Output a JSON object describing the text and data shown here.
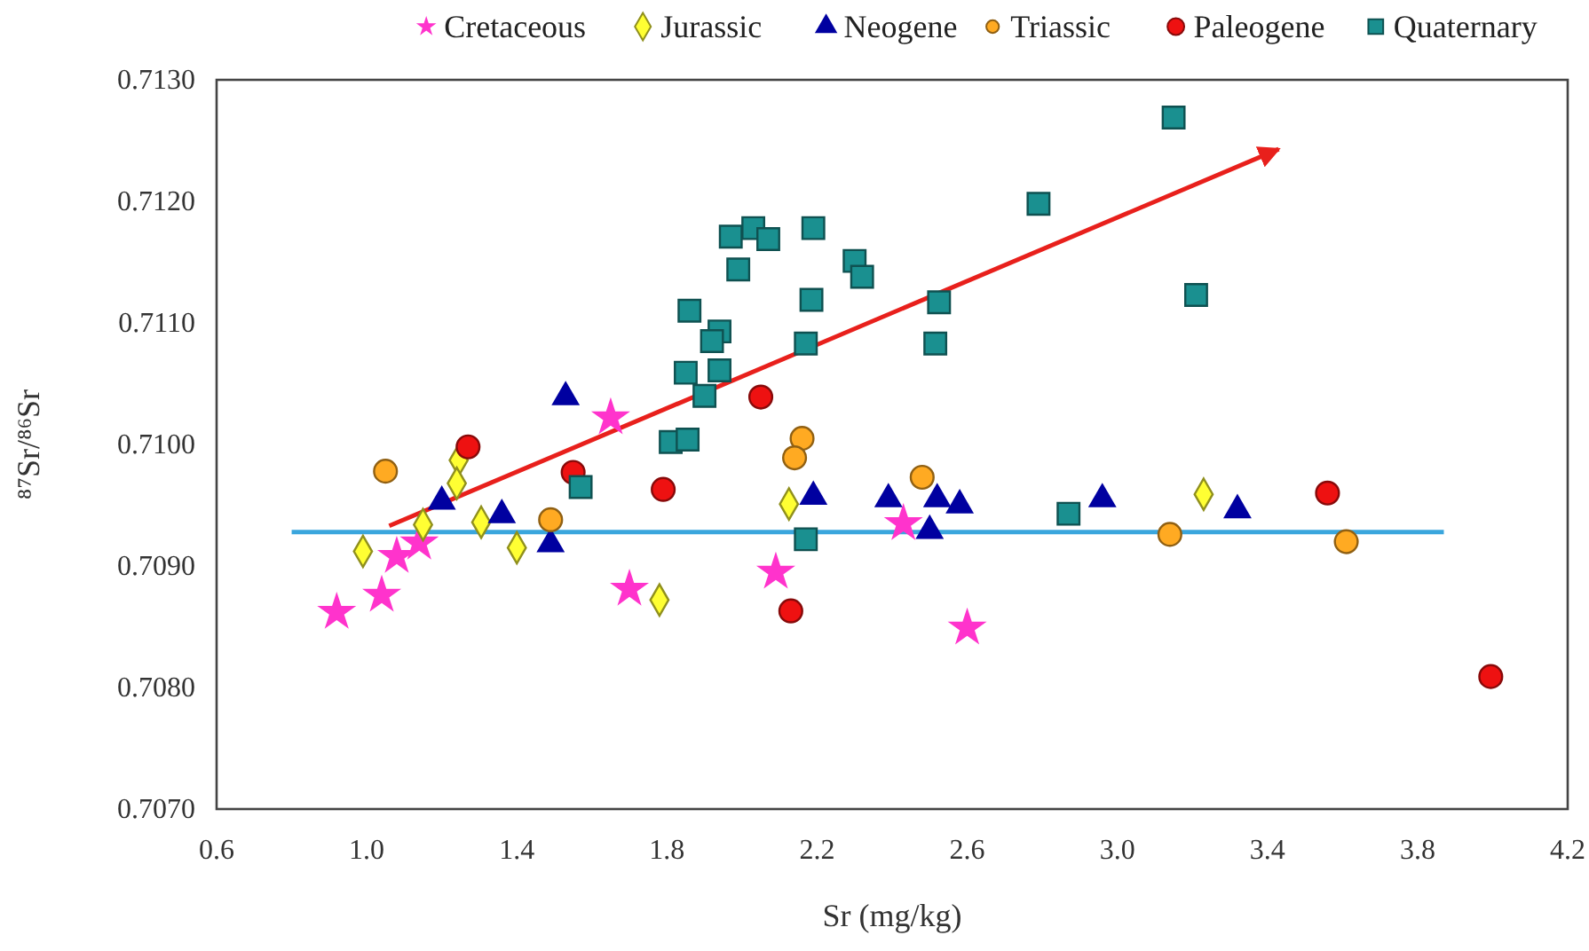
{
  "chart_data": {
    "type": "scatter",
    "xlabel": "Sr (mg/kg)",
    "ylabel": "⁸⁷Sr/⁸⁶Sr",
    "xlim": [
      0.6,
      4.2
    ],
    "xticks": [
      0.6,
      {
        "value": 1,
        "label": "1.0"
      },
      1.4,
      1.8,
      2.2,
      2.6,
      {
        "value": 3,
        "label": "3.0"
      },
      3.4,
      3.8,
      4.2
    ],
    "ylim": [
      0.707,
      0.713
    ],
    "yticks": [
      {
        "value": 0.707,
        "label": "0.7070"
      },
      {
        "value": 0.708,
        "label": "0.7080"
      },
      {
        "value": 0.709,
        "label": "0.7090"
      },
      {
        "value": 0.71,
        "label": "0.7100"
      },
      {
        "value": 0.711,
        "label": "0.7110"
      },
      {
        "value": 0.712,
        "label": "0.7120"
      },
      {
        "value": 0.713,
        "label": "0.7130"
      }
    ],
    "grid": false,
    "legend": "top",
    "series": [
      {
        "name": "Cretaceous",
        "color": "#ff33cc",
        "marker": "star",
        "x": [
          0.92,
          1.04,
          1.08,
          1.14,
          1.65,
          1.7,
          2.09,
          2.43,
          2.6
        ],
        "values": [
          0.70862,
          0.70876,
          0.70908,
          0.70919,
          0.71022,
          0.70881,
          0.70895,
          0.70935,
          0.70849
        ]
      },
      {
        "name": "Jurassic",
        "color": "#ffff33",
        "marker": "diamond",
        "x": [
          0.99,
          1.15,
          1.245,
          1.24,
          1.305,
          1.4,
          1.78,
          2.125,
          3.23
        ],
        "values": [
          0.70912,
          0.70934,
          0.70987,
          0.70968,
          0.70936,
          0.70915,
          0.70872,
          0.70951,
          0.70959
        ]
      },
      {
        "name": "Neogene",
        "color": "#0000a0",
        "marker": "triangle",
        "x": [
          1.2,
          1.36,
          1.49,
          1.53,
          2.19,
          2.39,
          2.52,
          2.58,
          2.5,
          2.96,
          3.32
        ],
        "values": [
          0.70953,
          0.70942,
          0.70918,
          0.71039,
          0.70957,
          0.70955,
          0.70955,
          0.7095,
          0.70929,
          0.70955,
          0.70946
        ]
      },
      {
        "name": "Triassic",
        "color": "#ffaa22",
        "marker": "circle",
        "x": [
          1.05,
          1.49,
          2.16,
          2.14,
          2.48,
          3.14,
          3.61
        ],
        "values": [
          0.70978,
          0.70938,
          0.71005,
          0.70989,
          0.70973,
          0.70926,
          0.7092
        ]
      },
      {
        "name": "Paleogene",
        "color": "#ee1111",
        "marker": "circle",
        "x": [
          1.27,
          1.55,
          1.79,
          2.05,
          2.13,
          3.56,
          3.995
        ],
        "values": [
          0.70998,
          0.70977,
          0.70963,
          0.71039,
          0.70863,
          0.7096,
          0.70809
        ]
      },
      {
        "name": "Quaternary",
        "color": "#1a9090",
        "marker": "square",
        "x": [
          1.57,
          1.81,
          1.855,
          1.9,
          1.85,
          1.94,
          1.86,
          1.94,
          1.92,
          1.99,
          1.97,
          2.03,
          2.07,
          2.19,
          2.185,
          2.17,
          2.17,
          2.3,
          2.32,
          2.525,
          2.515,
          2.79,
          2.87,
          3.15,
          3.21
        ],
        "values": [
          0.70965,
          0.71002,
          0.71004,
          0.7104,
          0.71059,
          0.71061,
          0.7111,
          0.71093,
          0.71085,
          0.71144,
          0.71171,
          0.71178,
          0.71169,
          0.71178,
          0.71119,
          0.71083,
          0.70922,
          0.71151,
          0.71138,
          0.71117,
          0.71083,
          0.71198,
          0.70943,
          0.71269,
          0.71123
        ]
      },
      {
        "type": "line",
        "color": "#e8201c",
        "line_style": "solid",
        "x": [
          1.06,
          3.43
        ],
        "values": [
          0.70933,
          0.71243
        ]
      },
      {
        "type": "line",
        "color": "#3aa6dd",
        "line_style": "solid",
        "x": [
          0.8,
          3.87
        ],
        "values": [
          0.70928,
          0.70928
        ]
      }
    ]
  }
}
